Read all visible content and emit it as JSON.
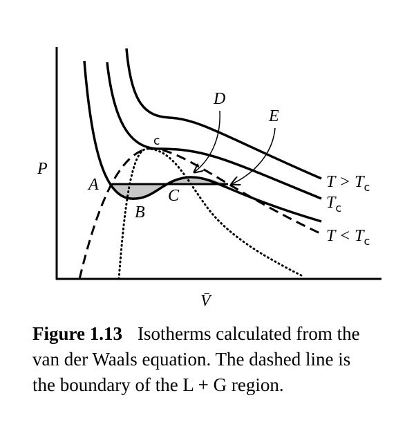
{
  "figure": {
    "axis_labels": {
      "y": "P",
      "x": "V̄"
    },
    "point_labels": {
      "A": "A",
      "B": "B",
      "C": "C",
      "c": "c",
      "D": "D",
      "E": "E"
    },
    "curve_labels": [
      {
        "text": "T > T",
        "subscript": "c"
      },
      {
        "text": "T",
        "subscript": "c"
      },
      {
        "text": "T < T",
        "subscript": "c"
      }
    ],
    "caption": {
      "label": "Figure 1.13",
      "text": "Isotherms calculated from the van der Waals equation. The dashed line is the boundary of the L + G region."
    }
  }
}
